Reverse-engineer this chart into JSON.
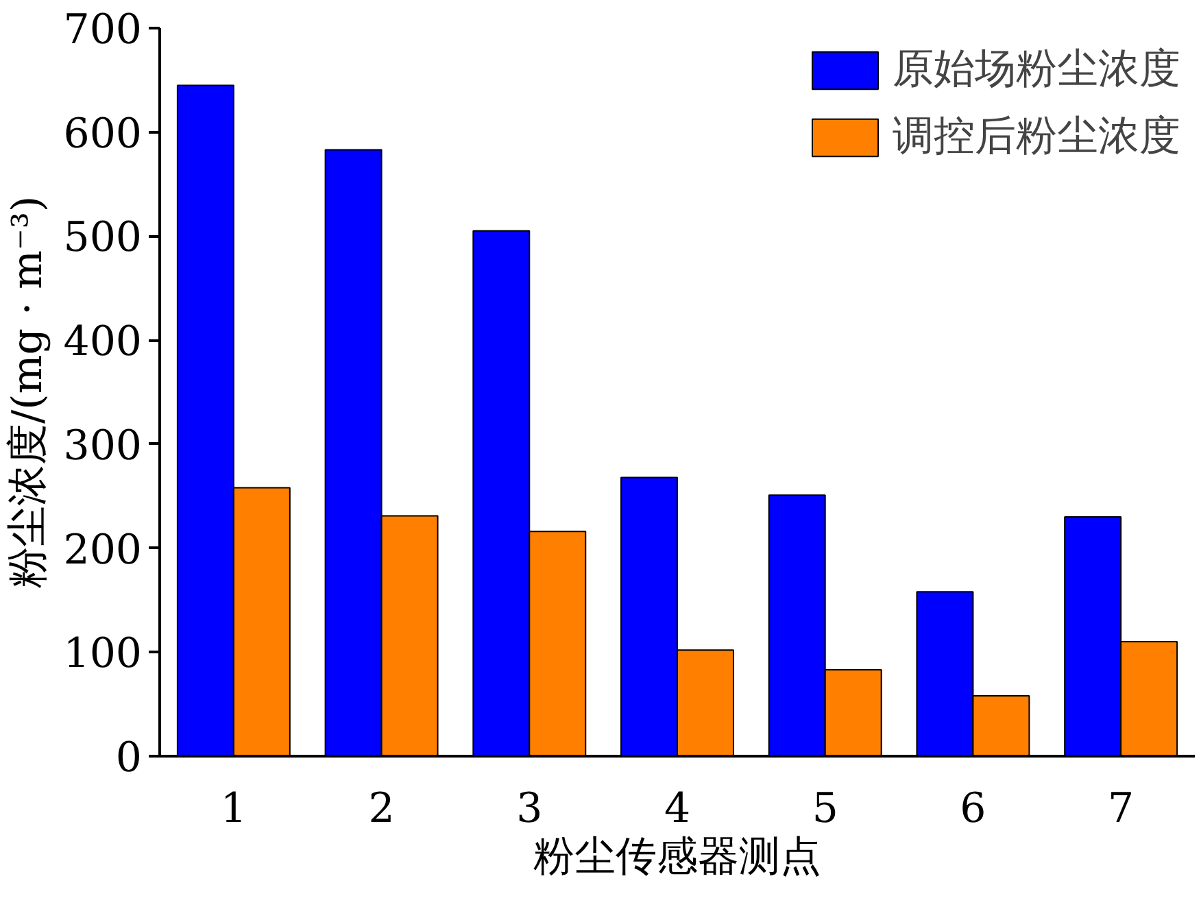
{
  "chart_data": {
    "type": "bar",
    "xlabel": "粉尘传感器测点",
    "ylabel": "粉尘浓度/(mg · m⁻³)",
    "categories": [
      "1",
      "2",
      "3",
      "4",
      "5",
      "6",
      "7"
    ],
    "series": [
      {
        "name": "原始场粉尘浓度",
        "color": "#0000ff",
        "values": [
          645,
          583,
          505,
          268,
          251,
          158,
          230
        ]
      },
      {
        "name": "调控后粉尘浓度",
        "color": "#ff7f00",
        "values": [
          258,
          231,
          216,
          102,
          83,
          58,
          110
        ]
      }
    ],
    "ylim": [
      0,
      700
    ],
    "yticks": [
      0,
      100,
      200,
      300,
      400,
      500,
      600,
      700
    ],
    "grid": false,
    "legend": "top right"
  }
}
